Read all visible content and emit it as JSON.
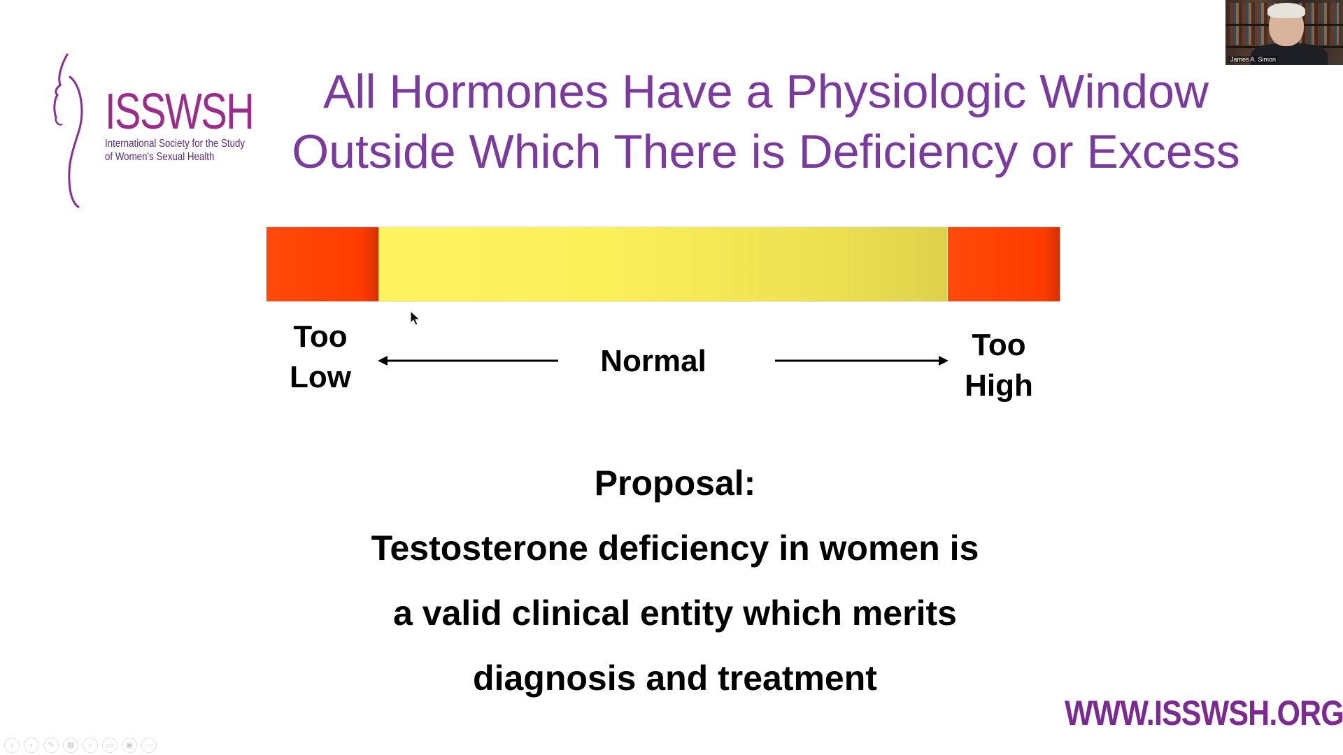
{
  "slide": {
    "title_lines": [
      "All Hormones Have a Physiologic Window",
      "Outside Which There is Deficiency or Excess"
    ],
    "logo": {
      "name": "ISSWSH",
      "subtitle_lines": [
        "International Society for the Study",
        "of Women's Sexual Health"
      ]
    },
    "scale": {
      "low_label_lines": [
        "Too",
        "Low"
      ],
      "normal_label": "Normal",
      "high_label_lines": [
        "Too",
        "High"
      ]
    },
    "proposal": {
      "heading": "Proposal:",
      "lines": [
        "Testosterone deficiency in women is",
        "a valid clinical entity which merits",
        "diagnosis and treatment"
      ]
    },
    "website": "WWW.ISSWSH.ORG"
  },
  "video_thumbnail": {
    "name": "James A. Simon"
  },
  "presenter_controls": [
    {
      "icon": "previous-icon",
      "glyph": "‹"
    },
    {
      "icon": "next-icon",
      "glyph": "›"
    },
    {
      "icon": "pen-icon",
      "glyph": "✎"
    },
    {
      "icon": "slides-icon",
      "glyph": "▦"
    },
    {
      "icon": "zoom-icon",
      "glyph": "⌕"
    },
    {
      "icon": "subtitles-icon",
      "glyph": "▭"
    },
    {
      "icon": "camera-icon",
      "glyph": "▣"
    },
    {
      "icon": "more-icon",
      "glyph": "⋯"
    }
  ],
  "colors": {
    "title_purple": "#7b3a9e",
    "logo_magenta": "#9c2c8c",
    "website_purple": "#7b2a92",
    "extreme_red": "#ff3c00",
    "normal_yellow": "#fbf058"
  }
}
